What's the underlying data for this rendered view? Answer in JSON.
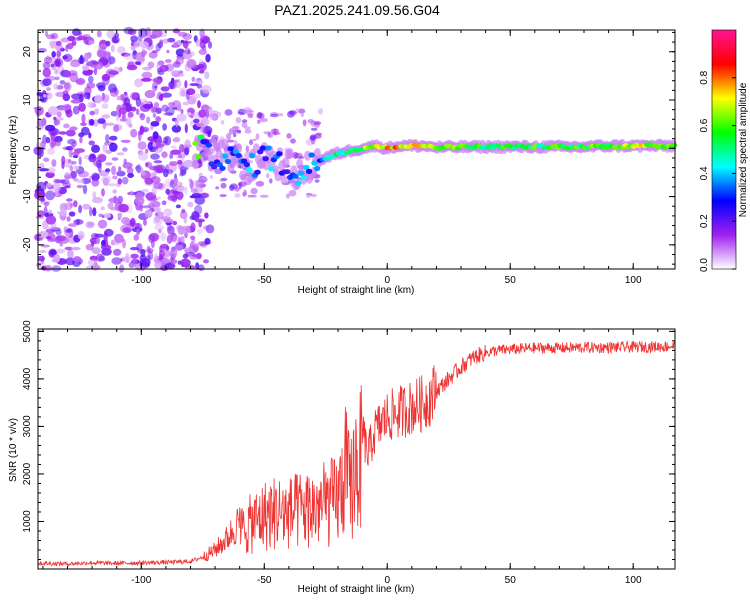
{
  "title": "PAZ1.2025.241.09.56.G04",
  "chart_data": [
    {
      "type": "heatmap",
      "xlabel": "Height of straight line (km)",
      "ylabel": "Frequency (Hz)",
      "xlim": [
        -142,
        117
      ],
      "ylim": [
        -25,
        24.5
      ],
      "xticks": [
        -100,
        -50,
        0,
        50,
        100
      ],
      "yticks": [
        -20,
        -10,
        0,
        10,
        20
      ],
      "colorbar": {
        "label": "Normalized spectral amplitude",
        "range": [
          0.0,
          1.0
        ],
        "ticks": [
          "0.0",
          "0.2",
          "0.4",
          "0.6",
          "0.8"
        ],
        "colors": [
          "#ffffff",
          "#a020f0",
          "#0000ff",
          "#00ffff",
          "#00ff00",
          "#ffff00",
          "#ff0000",
          "#ff1493"
        ]
      },
      "ridge": [
        {
          "x": -75,
          "f": -1.0,
          "amp": 0.25
        },
        {
          "x": -70,
          "f": -1.5,
          "amp": 0.3
        },
        {
          "x": -65,
          "f": -2.0,
          "amp": 0.35
        },
        {
          "x": -60,
          "f": -2.5,
          "amp": 0.3
        },
        {
          "x": -55,
          "f": -4.0,
          "amp": 0.35
        },
        {
          "x": -50,
          "f": -1.0,
          "amp": 0.3
        },
        {
          "x": -45,
          "f": -3.0,
          "amp": 0.35
        },
        {
          "x": -40,
          "f": -4.0,
          "amp": 0.3
        },
        {
          "x": -35,
          "f": -6.0,
          "amp": 0.35
        },
        {
          "x": -30,
          "f": -3.0,
          "amp": 0.35
        },
        {
          "x": -25,
          "f": -2.0,
          "amp": 0.4
        },
        {
          "x": -20,
          "f": -1.0,
          "amp": 0.5
        },
        {
          "x": -15,
          "f": -0.5,
          "amp": 0.55
        },
        {
          "x": -10,
          "f": 0.0,
          "amp": 0.6
        },
        {
          "x": -5,
          "f": 0.5,
          "amp": 0.7
        },
        {
          "x": 0,
          "f": 0.0,
          "amp": 0.75
        },
        {
          "x": 5,
          "f": 0.5,
          "amp": 0.75
        },
        {
          "x": 10,
          "f": 0.5,
          "amp": 0.7
        },
        {
          "x": 15,
          "f": 0.5,
          "amp": 0.75
        },
        {
          "x": 20,
          "f": 0.2,
          "amp": 0.65
        },
        {
          "x": 30,
          "f": 0.3,
          "amp": 0.6
        },
        {
          "x": 40,
          "f": 0.3,
          "amp": 0.55
        },
        {
          "x": 50,
          "f": 0.3,
          "amp": 0.55
        },
        {
          "x": 60,
          "f": 0.3,
          "amp": 0.55
        },
        {
          "x": 70,
          "f": 0.3,
          "amp": 0.55
        },
        {
          "x": 80,
          "f": 0.3,
          "amp": 0.55
        },
        {
          "x": 90,
          "f": 0.5,
          "amp": 0.6
        },
        {
          "x": 100,
          "f": 0.5,
          "amp": 0.7
        },
        {
          "x": 110,
          "f": 0.5,
          "amp": 0.65
        },
        {
          "x": 117,
          "f": 0.5,
          "amp": 0.6
        }
      ]
    },
    {
      "type": "line",
      "xlabel": "Height of straight line (km)",
      "ylabel": "SNR (10 * v/v)",
      "xlim": [
        -142,
        117
      ],
      "ylim": [
        0,
        5050
      ],
      "xticks": [
        -100,
        -50,
        0,
        50,
        100
      ],
      "yticks": [
        1000,
        2000,
        3000,
        4000,
        5000
      ],
      "series": [
        {
          "name": "SNR",
          "color": "#ee3333",
          "x": [
            -142,
            -130,
            -120,
            -110,
            -100,
            -90,
            -80,
            -75,
            -70,
            -65,
            -60,
            -55,
            -50,
            -45,
            -40,
            -35,
            -30,
            -25,
            -20,
            -17,
            -15,
            -13,
            -10,
            -8,
            -5,
            0,
            5,
            10,
            15,
            20,
            25,
            30,
            35,
            40,
            45,
            50,
            60,
            70,
            80,
            90,
            100,
            110,
            117
          ],
          "values": [
            120,
            110,
            130,
            120,
            130,
            140,
            160,
            250,
            400,
            650,
            1000,
            1200,
            1400,
            1500,
            1450,
            1550,
            1600,
            1700,
            1800,
            2600,
            2000,
            2800,
            2900,
            2400,
            2900,
            3200,
            3300,
            3400,
            3500,
            3750,
            4000,
            4250,
            4450,
            4550,
            4600,
            4620,
            4650,
            4650,
            4660,
            4660,
            4670,
            4680,
            4690
          ]
        }
      ]
    }
  ]
}
